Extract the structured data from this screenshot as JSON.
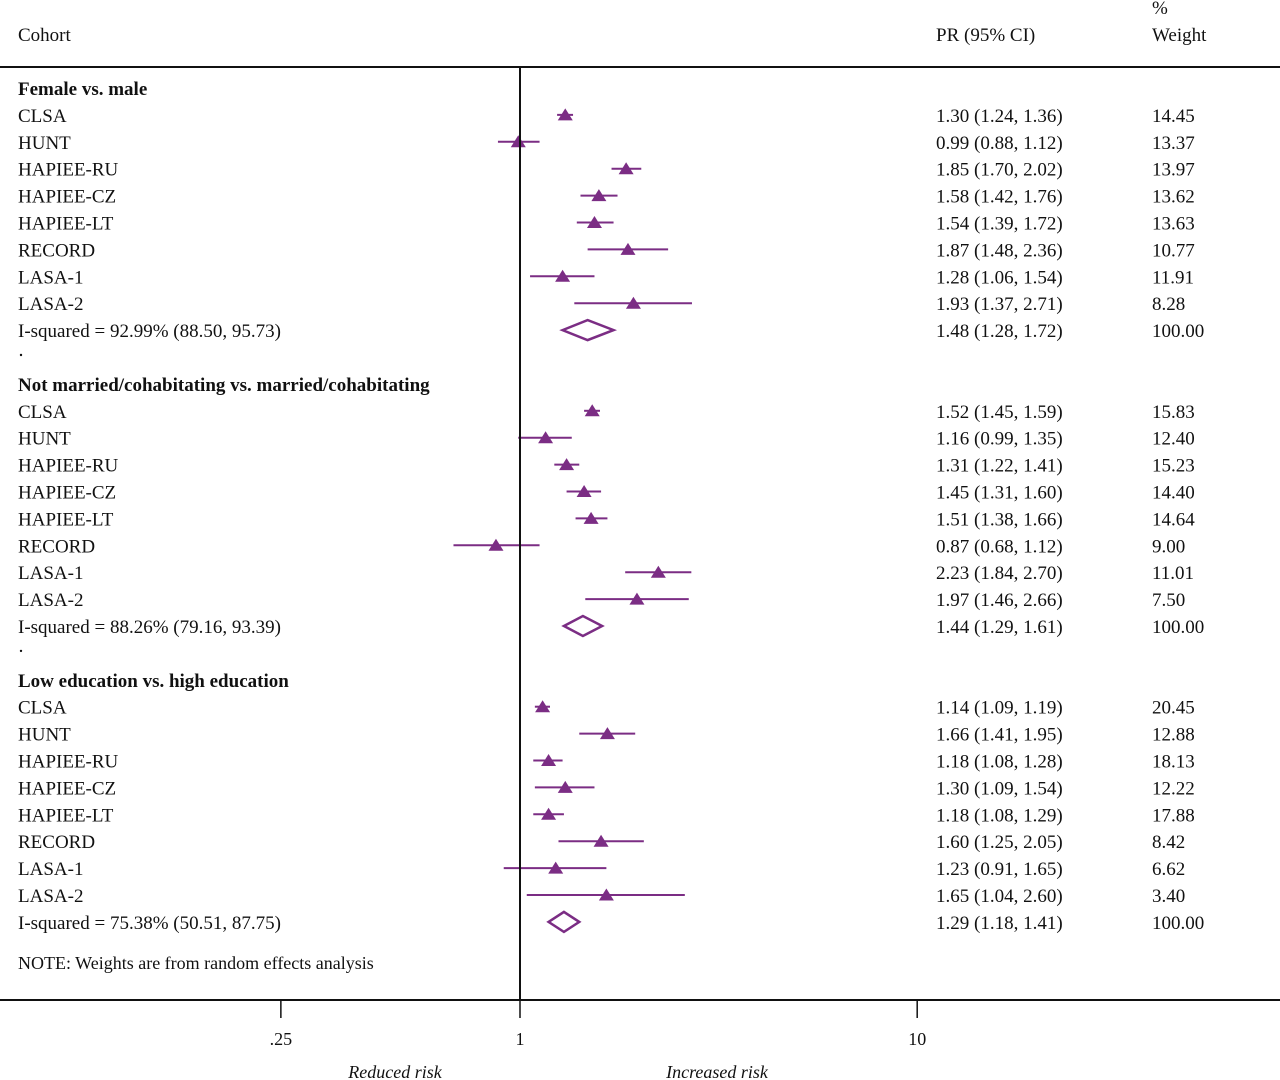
{
  "header": {
    "cohort": "Cohort",
    "pr": "PR (95% CI)",
    "weight_pct": "%",
    "weight": "Weight"
  },
  "note": "NOTE: Weights are from random effects analysis",
  "x_axis": {
    "ticks": [
      ".25",
      "1",
      "10"
    ],
    "left_label": "Reduced risk",
    "right_label": "Increased risk"
  },
  "colors": {
    "marker": "#7b2d84",
    "axis": "#111111"
  },
  "chart_data": {
    "type": "forest",
    "title": "",
    "xlabel": "",
    "scale": "log",
    "null_line": 1,
    "x_ticks": [
      0.25,
      1,
      10
    ],
    "xlim": [
      0.25,
      10
    ],
    "groups": [
      {
        "name": "Female vs. male",
        "studies": [
          {
            "label": "CLSA",
            "pr": 1.3,
            "lo": 1.24,
            "hi": 1.36,
            "text": "1.30 (1.24, 1.36)",
            "weight": "14.45"
          },
          {
            "label": "HUNT",
            "pr": 0.99,
            "lo": 0.88,
            "hi": 1.12,
            "text": "0.99 (0.88, 1.12)",
            "weight": "13.37"
          },
          {
            "label": "HAPIEE-RU",
            "pr": 1.85,
            "lo": 1.7,
            "hi": 2.02,
            "text": "1.85 (1.70, 2.02)",
            "weight": "13.97"
          },
          {
            "label": "HAPIEE-CZ",
            "pr": 1.58,
            "lo": 1.42,
            "hi": 1.76,
            "text": "1.58 (1.42, 1.76)",
            "weight": "13.62"
          },
          {
            "label": "HAPIEE-LT",
            "pr": 1.54,
            "lo": 1.39,
            "hi": 1.72,
            "text": "1.54 (1.39, 1.72)",
            "weight": "13.63"
          },
          {
            "label": "RECORD",
            "pr": 1.87,
            "lo": 1.48,
            "hi": 2.36,
            "text": "1.87 (1.48, 2.36)",
            "weight": "10.77"
          },
          {
            "label": "LASA-1",
            "pr": 1.28,
            "lo": 1.06,
            "hi": 1.54,
            "text": "1.28 (1.06, 1.54)",
            "weight": "11.91"
          },
          {
            "label": "LASA-2",
            "pr": 1.93,
            "lo": 1.37,
            "hi": 2.71,
            "text": "1.93 (1.37, 2.71)",
            "weight": "8.28"
          }
        ],
        "overall": {
          "label": "I-squared = 92.99% (88.50, 95.73)",
          "pr": 1.48,
          "lo": 1.28,
          "hi": 1.72,
          "text": "1.48 (1.28, 1.72)",
          "weight": "100.00"
        }
      },
      {
        "name": "Not married/cohabitating vs. married/cohabitating",
        "studies": [
          {
            "label": "CLSA",
            "pr": 1.52,
            "lo": 1.45,
            "hi": 1.59,
            "text": "1.52 (1.45, 1.59)",
            "weight": "15.83"
          },
          {
            "label": "HUNT",
            "pr": 1.16,
            "lo": 0.99,
            "hi": 1.35,
            "text": "1.16 (0.99, 1.35)",
            "weight": "12.40"
          },
          {
            "label": "HAPIEE-RU",
            "pr": 1.31,
            "lo": 1.22,
            "hi": 1.41,
            "text": "1.31 (1.22, 1.41)",
            "weight": "15.23"
          },
          {
            "label": "HAPIEE-CZ",
            "pr": 1.45,
            "lo": 1.31,
            "hi": 1.6,
            "text": "1.45 (1.31, 1.60)",
            "weight": "14.40"
          },
          {
            "label": "HAPIEE-LT",
            "pr": 1.51,
            "lo": 1.38,
            "hi": 1.66,
            "text": "1.51 (1.38, 1.66)",
            "weight": "14.64"
          },
          {
            "label": "RECORD",
            "pr": 0.87,
            "lo": 0.68,
            "hi": 1.12,
            "text": "0.87 (0.68, 1.12)",
            "weight": "9.00"
          },
          {
            "label": "LASA-1",
            "pr": 2.23,
            "lo": 1.84,
            "hi": 2.7,
            "text": "2.23 (1.84, 2.70)",
            "weight": "11.01"
          },
          {
            "label": "LASA-2",
            "pr": 1.97,
            "lo": 1.46,
            "hi": 2.66,
            "text": "1.97 (1.46, 2.66)",
            "weight": "7.50"
          }
        ],
        "overall": {
          "label": "I-squared = 88.26% (79.16, 93.39)",
          "pr": 1.44,
          "lo": 1.29,
          "hi": 1.61,
          "text": "1.44 (1.29, 1.61)",
          "weight": "100.00"
        }
      },
      {
        "name": "Low education vs. high education",
        "studies": [
          {
            "label": "CLSA",
            "pr": 1.14,
            "lo": 1.09,
            "hi": 1.19,
            "text": "1.14 (1.09, 1.19)",
            "weight": "20.45"
          },
          {
            "label": "HUNT",
            "pr": 1.66,
            "lo": 1.41,
            "hi": 1.95,
            "text": "1.66 (1.41, 1.95)",
            "weight": "12.88"
          },
          {
            "label": "HAPIEE-RU",
            "pr": 1.18,
            "lo": 1.08,
            "hi": 1.28,
            "text": "1.18 (1.08, 1.28)",
            "weight": "18.13"
          },
          {
            "label": "HAPIEE-CZ",
            "pr": 1.3,
            "lo": 1.09,
            "hi": 1.54,
            "text": "1.30 (1.09, 1.54)",
            "weight": "12.22"
          },
          {
            "label": "HAPIEE-LT",
            "pr": 1.18,
            "lo": 1.08,
            "hi": 1.29,
            "text": "1.18 (1.08, 1.29)",
            "weight": "17.88"
          },
          {
            "label": "RECORD",
            "pr": 1.6,
            "lo": 1.25,
            "hi": 2.05,
            "text": "1.60 (1.25, 2.05)",
            "weight": "8.42"
          },
          {
            "label": "LASA-1",
            "pr": 1.23,
            "lo": 0.91,
            "hi": 1.65,
            "text": "1.23 (0.91, 1.65)",
            "weight": "6.62"
          },
          {
            "label": "LASA-2",
            "pr": 1.65,
            "lo": 1.04,
            "hi": 2.6,
            "text": "1.65 (1.04, 2.60)",
            "weight": "3.40"
          }
        ],
        "overall": {
          "label": "I-squared = 75.38% (50.51, 87.75)",
          "pr": 1.29,
          "lo": 1.18,
          "hi": 1.41,
          "text": "1.29 (1.18, 1.41)",
          "weight": "100.00"
        }
      }
    ]
  }
}
